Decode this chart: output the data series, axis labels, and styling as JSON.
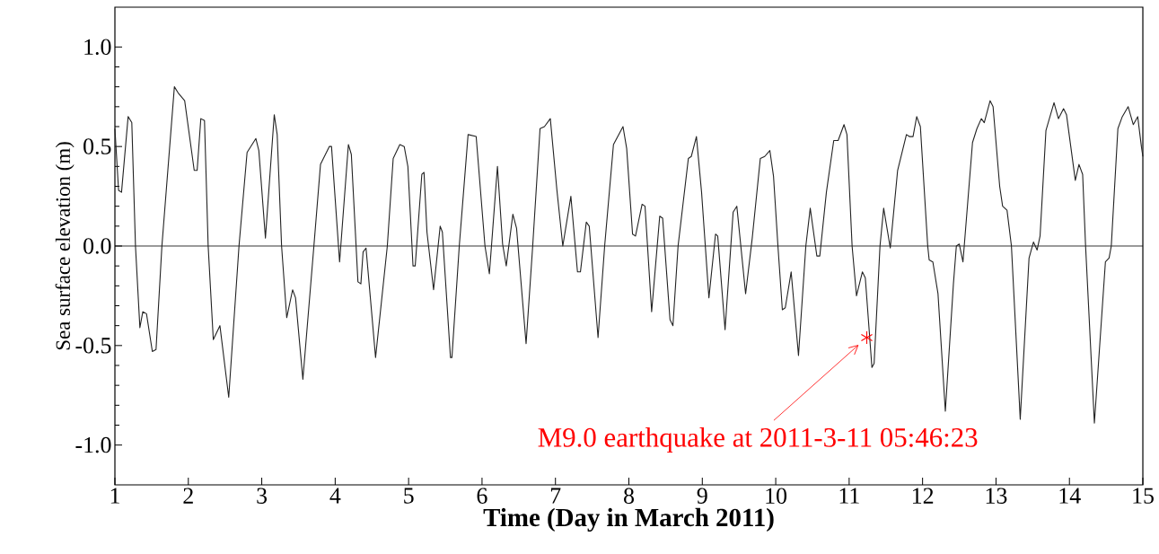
{
  "chart_data": {
    "type": "line",
    "xlabel": "Time (Day in March 2011)",
    "ylabel": "Sea surface elevation (m)",
    "xlim": [
      1,
      15
    ],
    "ylim": [
      -1.2,
      1.2
    ],
    "xticks": [
      1,
      2,
      3,
      4,
      5,
      6,
      7,
      8,
      9,
      10,
      11,
      12,
      13,
      14,
      15
    ],
    "yticks": [
      {
        "value": -1,
        "label": "-1.0"
      },
      {
        "value": -0.5,
        "label": "-0.5"
      },
      {
        "value": 0,
        "label": "0.0"
      },
      {
        "value": 0.5,
        "label": "0.5"
      },
      {
        "value": 1,
        "label": "1.0"
      }
    ],
    "line_style": "solid",
    "ref_lines": [
      {
        "axis": "y",
        "value": 0,
        "color": "#000000"
      }
    ],
    "annotations": [
      "M9.0 earthquake at 2011-3-11 05:46:23"
    ],
    "series": [
      {
        "color": "#222222",
        "x": [
          1.0,
          1.05,
          1.09,
          1.18,
          1.23,
          1.28,
          1.34,
          1.38,
          1.43,
          1.51,
          1.56,
          1.64,
          1.81,
          1.86,
          1.95,
          2.08,
          2.12,
          2.17,
          2.22,
          2.27,
          2.34,
          2.43,
          2.55,
          2.69,
          2.8,
          2.92,
          2.96,
          3.05,
          3.17,
          3.21,
          3.27,
          3.34,
          3.42,
          3.46,
          3.56,
          3.71,
          3.8,
          3.92,
          3.95,
          4.06,
          4.18,
          4.22,
          4.31,
          4.35,
          4.38,
          4.42,
          4.55,
          4.71,
          4.79,
          4.88,
          4.94,
          4.99,
          5.06,
          5.09,
          5.18,
          5.21,
          5.25,
          5.34,
          5.43,
          5.46,
          5.57,
          5.59,
          5.69,
          5.81,
          5.92,
          6.04,
          6.1,
          6.21,
          6.28,
          6.33,
          6.42,
          6.47,
          6.6,
          6.69,
          6.79,
          6.85,
          6.93,
          7.02,
          7.1,
          7.21,
          7.3,
          7.34,
          7.42,
          7.46,
          7.58,
          7.67,
          7.79,
          7.92,
          7.97,
          8.05,
          8.09,
          8.18,
          8.22,
          8.31,
          8.42,
          8.46,
          8.56,
          8.6,
          8.67,
          8.81,
          8.85,
          8.92,
          8.99,
          9.09,
          9.18,
          9.21,
          9.31,
          9.42,
          9.47,
          9.59,
          9.68,
          9.79,
          9.85,
          9.92,
          9.97,
          10.03,
          10.09,
          10.13,
          10.21,
          10.31,
          10.41,
          10.47,
          10.56,
          10.6,
          10.69,
          10.79,
          10.85,
          10.93,
          10.97,
          11.04,
          11.1,
          11.18,
          11.22,
          11.31,
          11.34,
          11.42,
          11.47,
          11.56,
          11.66,
          11.78,
          11.82,
          11.87,
          11.92,
          11.97,
          12.07,
          12.09,
          12.14,
          12.21,
          12.31,
          12.42,
          12.46,
          12.5,
          12.55,
          12.68,
          12.74,
          12.8,
          12.84,
          12.92,
          12.96,
          13.05,
          13.09,
          13.15,
          13.21,
          13.33,
          13.45,
          13.51,
          13.56,
          13.6,
          13.68,
          13.79,
          13.85,
          13.92,
          13.96,
          14.08,
          14.13,
          14.18,
          14.22,
          14.34,
          14.49,
          14.54,
          14.57,
          14.66,
          14.72,
          14.8,
          14.87,
          14.93,
          14.98,
          15.0
        ],
        "values": [
          0.59,
          0.28,
          0.27,
          0.65,
          0.62,
          0.0,
          -0.41,
          -0.33,
          -0.34,
          -0.53,
          -0.52,
          0.0,
          0.8,
          0.77,
          0.73,
          0.38,
          0.38,
          0.64,
          0.63,
          0.0,
          -0.47,
          -0.4,
          -0.76,
          0.0,
          0.47,
          0.54,
          0.48,
          0.04,
          0.66,
          0.56,
          0.0,
          -0.36,
          -0.22,
          -0.26,
          -0.67,
          0.0,
          0.41,
          0.5,
          0.5,
          -0.08,
          0.51,
          0.46,
          -0.18,
          -0.19,
          -0.03,
          -0.01,
          -0.56,
          0.0,
          0.44,
          0.51,
          0.5,
          0.4,
          -0.1,
          -0.1,
          0.36,
          0.37,
          0.07,
          -0.22,
          0.1,
          0.07,
          -0.56,
          -0.56,
          0.0,
          0.56,
          0.55,
          0.0,
          -0.14,
          0.4,
          0.01,
          -0.1,
          0.16,
          0.09,
          -0.49,
          0.0,
          0.59,
          0.6,
          0.64,
          0.28,
          0.0,
          0.25,
          -0.13,
          -0.13,
          0.12,
          0.1,
          -0.46,
          0.0,
          0.51,
          0.6,
          0.49,
          0.06,
          0.05,
          0.21,
          0.2,
          -0.33,
          0.15,
          0.14,
          -0.37,
          -0.4,
          0.0,
          0.44,
          0.45,
          0.55,
          0.27,
          -0.26,
          0.06,
          0.05,
          -0.42,
          0.17,
          0.2,
          -0.24,
          0.04,
          0.44,
          0.45,
          0.48,
          0.35,
          0.0,
          -0.32,
          -0.31,
          -0.13,
          -0.55,
          0.0,
          0.19,
          -0.05,
          -0.05,
          0.27,
          0.53,
          0.53,
          0.61,
          0.56,
          0.0,
          -0.25,
          -0.13,
          -0.16,
          -0.61,
          -0.59,
          0.0,
          0.19,
          -0.01,
          0.38,
          0.56,
          0.55,
          0.55,
          0.65,
          0.6,
          0.0,
          -0.07,
          -0.08,
          -0.24,
          -0.83,
          -0.19,
          0.0,
          0.01,
          -0.08,
          0.52,
          0.59,
          0.64,
          0.62,
          0.73,
          0.7,
          0.3,
          0.2,
          0.18,
          0.0,
          -0.87,
          -0.06,
          0.02,
          -0.02,
          0.05,
          0.58,
          0.72,
          0.64,
          0.69,
          0.66,
          0.33,
          0.41,
          0.36,
          0.0,
          -0.89,
          -0.08,
          -0.06,
          0.0,
          0.59,
          0.65,
          0.7,
          0.61,
          0.65,
          0.5,
          0.45
        ]
      },
      {
        "type": "scatter",
        "marker": "cross",
        "color": "#ff0000",
        "x": [
          11.24
        ],
        "values": [
          -0.46
        ]
      }
    ]
  }
}
